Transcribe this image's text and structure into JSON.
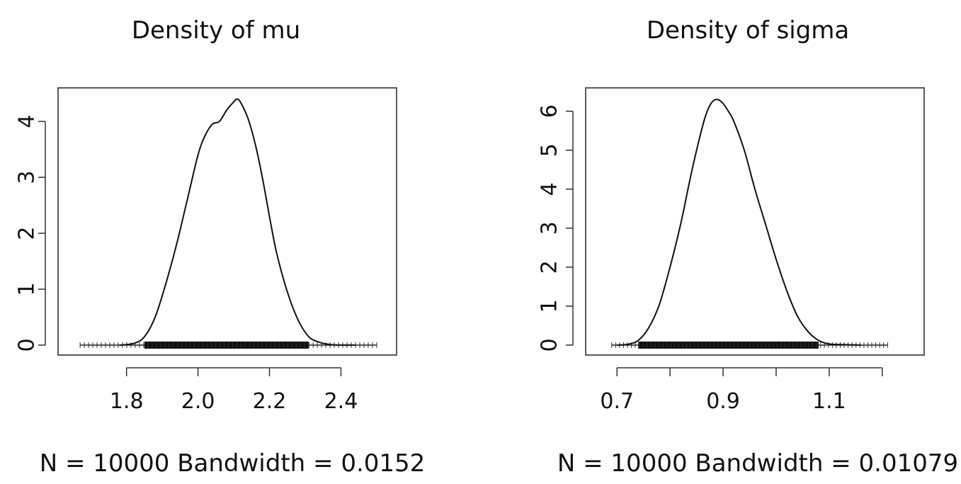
{
  "colors": {
    "line": "#111111",
    "background": "#ffffff",
    "frame": "#333333"
  },
  "chart_data": [
    {
      "type": "line",
      "title": "Density of mu",
      "xlabel": "N = 10000 Bandwidth = 0.0152",
      "ylabel": "",
      "xlim": [
        1.65,
        2.52
      ],
      "ylim": [
        0,
        4.6
      ],
      "xticks": [
        {
          "value": 1.8,
          "label": "1.8"
        },
        {
          "value": 2.0,
          "label": "2.0"
        },
        {
          "value": 2.2,
          "label": "2.2"
        },
        {
          "value": 2.4,
          "label": "2.4"
        }
      ],
      "yticks": [
        {
          "value": 0,
          "label": "0"
        },
        {
          "value": 1,
          "label": "1"
        },
        {
          "value": 2,
          "label": "2"
        },
        {
          "value": 3,
          "label": "3"
        },
        {
          "value": 4,
          "label": "4"
        }
      ],
      "rug_range": [
        1.67,
        2.5
      ],
      "series": [
        {
          "x": [
            1.78,
            1.82,
            1.85,
            1.88,
            1.91,
            1.94,
            1.97,
            2.0,
            2.02,
            2.04,
            2.06,
            2.08,
            2.1,
            2.11,
            2.12,
            2.14,
            2.16,
            2.18,
            2.2,
            2.22,
            2.25,
            2.28,
            2.31,
            2.34,
            2.37,
            2.4,
            2.44
          ],
          "values": [
            0.0,
            0.03,
            0.15,
            0.5,
            1.1,
            1.8,
            2.6,
            3.4,
            3.75,
            3.95,
            4.0,
            4.2,
            4.35,
            4.4,
            4.33,
            4.05,
            3.6,
            3.0,
            2.3,
            1.65,
            0.95,
            0.45,
            0.15,
            0.05,
            0.01,
            0.0,
            0.0
          ]
        }
      ]
    },
    {
      "type": "line",
      "title": "Density of sigma",
      "xlabel": "N = 10000 Bandwidth = 0.01079",
      "ylabel": "",
      "xlim": [
        0.665,
        1.255
      ],
      "ylim": [
        0,
        6.6
      ],
      "xticks": [
        {
          "value": 0.7,
          "label": "0.7"
        },
        {
          "value": 0.8,
          "label": ""
        },
        {
          "value": 0.9,
          "label": "0.9"
        },
        {
          "value": 1.0,
          "label": ""
        },
        {
          "value": 1.1,
          "label": "1.1"
        },
        {
          "value": 1.2,
          "label": ""
        }
      ],
      "yticks": [
        {
          "value": 0,
          "label": "0"
        },
        {
          "value": 1,
          "label": "1"
        },
        {
          "value": 2,
          "label": "2"
        },
        {
          "value": 3,
          "label": "3"
        },
        {
          "value": 4,
          "label": "4"
        },
        {
          "value": 5,
          "label": "5"
        },
        {
          "value": 6,
          "label": "6"
        }
      ],
      "rug_range": [
        0.69,
        1.21
      ],
      "series": [
        {
          "x": [
            0.7,
            0.72,
            0.74,
            0.76,
            0.78,
            0.8,
            0.82,
            0.84,
            0.86,
            0.87,
            0.88,
            0.89,
            0.9,
            0.91,
            0.92,
            0.94,
            0.96,
            0.98,
            1.0,
            1.02,
            1.04,
            1.06,
            1.08,
            1.1,
            1.13,
            1.16
          ],
          "values": [
            0.0,
            0.02,
            0.12,
            0.45,
            1.05,
            2.0,
            3.1,
            4.4,
            5.55,
            6.0,
            6.25,
            6.3,
            6.2,
            6.0,
            5.75,
            5.0,
            4.0,
            3.1,
            2.2,
            1.4,
            0.75,
            0.35,
            0.12,
            0.03,
            0.01,
            0.0
          ]
        }
      ]
    }
  ]
}
